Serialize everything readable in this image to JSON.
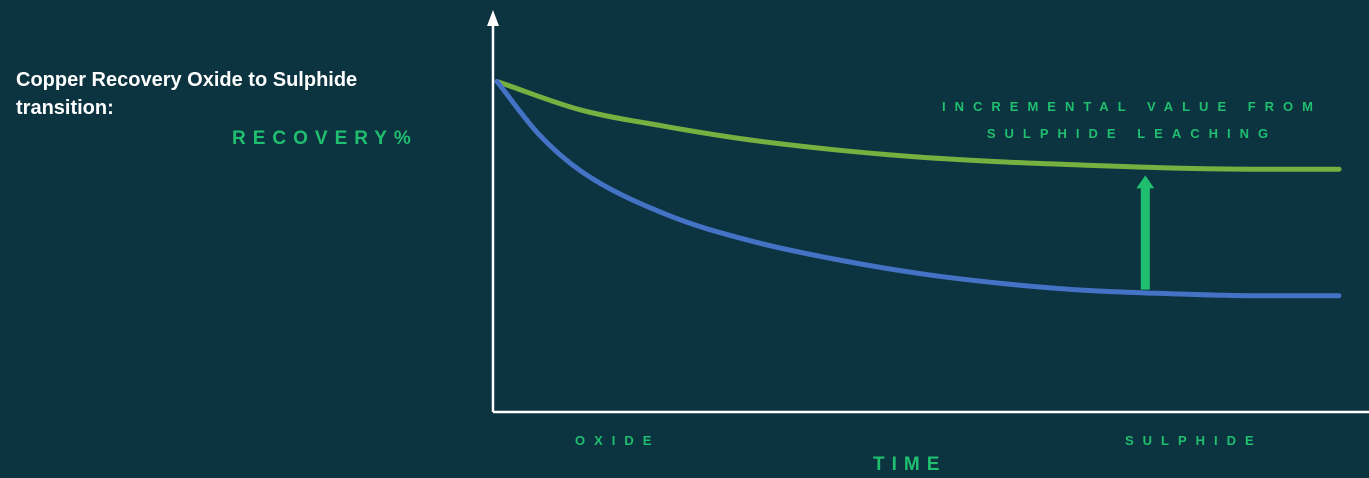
{
  "title_line1": "Copper Recovery Oxide to Sulphide",
  "title_line2": "transition:",
  "chart_data": {
    "type": "line",
    "title": "Copper Recovery Oxide to Sulphide transition:",
    "ylabel": "RECOVERY%",
    "xlabel": "TIME",
    "x_categories": [
      "OXIDE",
      "SULPHIDE"
    ],
    "xlim": [
      0,
      1
    ],
    "ylim": [
      0,
      1
    ],
    "grid": false,
    "legend": "none",
    "series": [
      {
        "color": "#76b041",
        "x": [
          0,
          0.1,
          0.2,
          0.3,
          0.4,
          0.5,
          0.6,
          0.7,
          0.8,
          0.9,
          1.0
        ],
        "y": [
          0.81,
          0.74,
          0.7,
          0.667,
          0.643,
          0.625,
          0.613,
          0.605,
          0.598,
          0.595,
          0.595
        ]
      },
      {
        "color": "#4472c4",
        "x": [
          0,
          0.05,
          0.1,
          0.2,
          0.3,
          0.4,
          0.5,
          0.6,
          0.7,
          0.8,
          0.9,
          1.0
        ],
        "y": [
          0.81,
          0.68,
          0.59,
          0.485,
          0.42,
          0.375,
          0.34,
          0.315,
          0.298,
          0.29,
          0.285,
          0.285
        ]
      }
    ],
    "annotation": {
      "line1": "INCREMENTAL VALUE FROM",
      "line2": "SULPHIDE LEACHING",
      "arrow_x": 0.77,
      "arrow_from_y": 0.3,
      "arrow_to_y": 0.58
    }
  },
  "colors": {
    "background": "#0c3340",
    "axis": "#ffffff",
    "label_green": "#1fbf6f",
    "arrow_green": "#1fbf6f"
  }
}
